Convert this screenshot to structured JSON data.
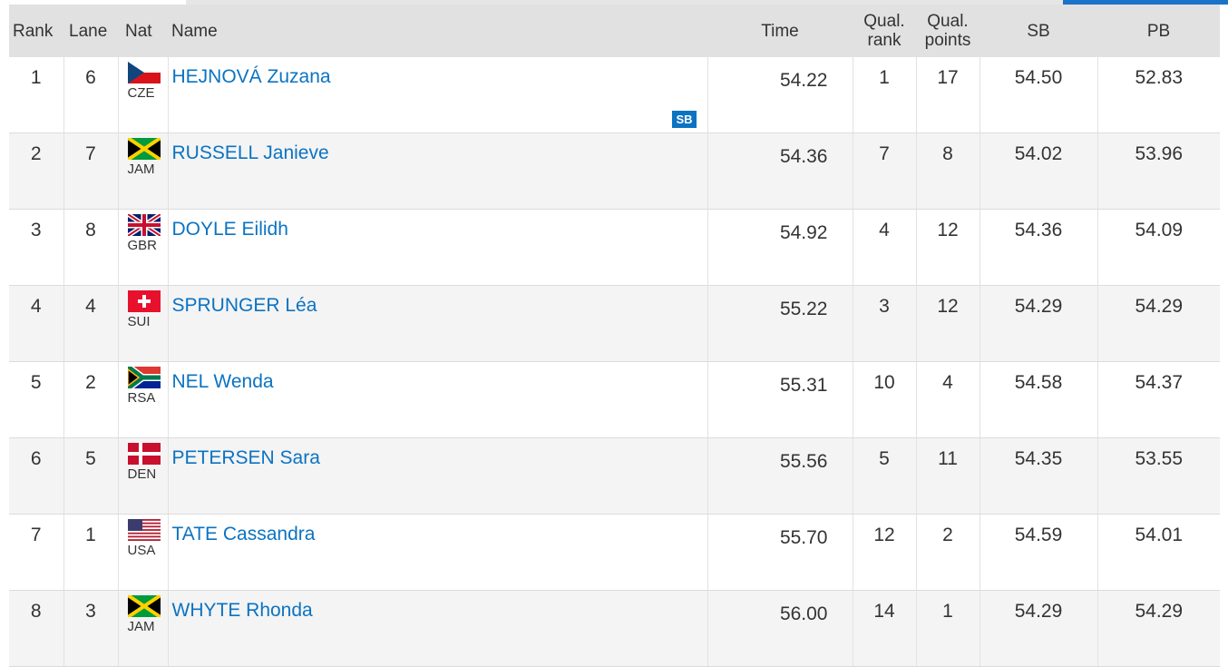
{
  "header": {
    "columns": [
      "Rank",
      "Lane",
      "Nat",
      "Name",
      "Time",
      "Qual. rank",
      "Qual. points",
      "SB",
      "PB"
    ]
  },
  "rows": [
    {
      "rank": 1,
      "lane": 6,
      "nat": "CZE",
      "name": "HEJNOVÁ Zuzana",
      "time": "54.22",
      "qual_rank": 1,
      "qual_points": 17,
      "sb": "54.50",
      "pb": "52.83",
      "badge": "SB"
    },
    {
      "rank": 2,
      "lane": 7,
      "nat": "JAM",
      "name": "RUSSELL Janieve",
      "time": "54.36",
      "qual_rank": 7,
      "qual_points": 8,
      "sb": "54.02",
      "pb": "53.96"
    },
    {
      "rank": 3,
      "lane": 8,
      "nat": "GBR",
      "name": "DOYLE Eilidh",
      "time": "54.92",
      "qual_rank": 4,
      "qual_points": 12,
      "sb": "54.36",
      "pb": "54.09"
    },
    {
      "rank": 4,
      "lane": 4,
      "nat": "SUI",
      "name": "SPRUNGER Léa",
      "time": "55.22",
      "qual_rank": 3,
      "qual_points": 12,
      "sb": "54.29",
      "pb": "54.29"
    },
    {
      "rank": 5,
      "lane": 2,
      "nat": "RSA",
      "name": "NEL Wenda",
      "time": "55.31",
      "qual_rank": 10,
      "qual_points": 4,
      "sb": "54.58",
      "pb": "54.37"
    },
    {
      "rank": 6,
      "lane": 5,
      "nat": "DEN",
      "name": "PETERSEN Sara",
      "time": "55.56",
      "qual_rank": 5,
      "qual_points": 11,
      "sb": "54.35",
      "pb": "53.55"
    },
    {
      "rank": 7,
      "lane": 1,
      "nat": "USA",
      "name": "TATE Cassandra",
      "time": "55.70",
      "qual_rank": 12,
      "qual_points": 2,
      "sb": "54.59",
      "pb": "54.01"
    },
    {
      "rank": 8,
      "lane": 3,
      "nat": "JAM",
      "name": "WHYTE Rhonda",
      "time": "56.00",
      "qual_rank": 14,
      "qual_points": 1,
      "sb": "54.29",
      "pb": "54.29"
    }
  ]
}
